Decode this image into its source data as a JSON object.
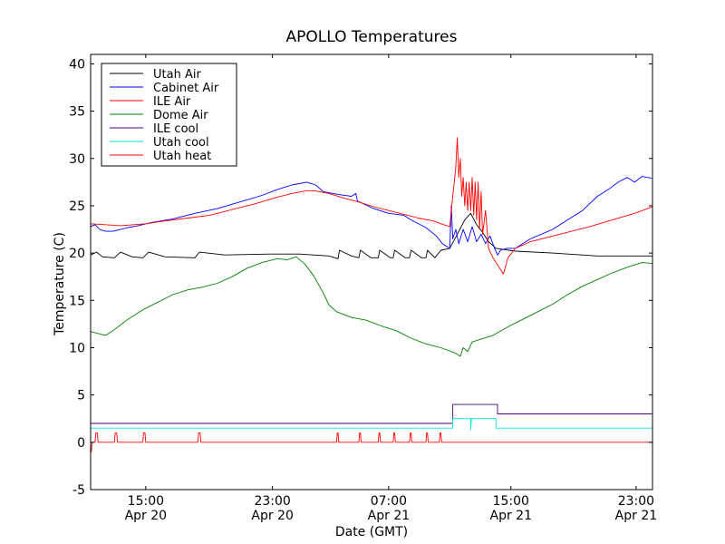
{
  "chart_data": {
    "type": "line",
    "title": "APOLLO Temperatures",
    "xlabel": "Date (GMT)",
    "ylabel": "Temperature (C)",
    "x_unit": "hours since Apr 20 10:00 GMT",
    "xlim": [
      0,
      37.7
    ],
    "ylim": [
      -5,
      41
    ],
    "yticks": [
      -5,
      0,
      5,
      10,
      15,
      20,
      25,
      30,
      35,
      40
    ],
    "ytick_labels": [
      "-5",
      "0",
      "5",
      "10",
      "15",
      "20",
      "25",
      "30",
      "35",
      "40"
    ],
    "xticks": [
      {
        "x": 3.7,
        "time": "15:00",
        "date": "Apr 20"
      },
      {
        "x": 12.2,
        "time": "23:00",
        "date": "Apr 20"
      },
      {
        "x": 20.0,
        "time": "07:00",
        "date": "Apr 21"
      },
      {
        "x": 28.2,
        "time": "15:00",
        "date": "Apr 21"
      },
      {
        "x": 36.6,
        "time": "23:00",
        "date": "Apr 21"
      }
    ],
    "legend_position": "top-left",
    "series": [
      {
        "name": "Utah Air",
        "color": "#000000",
        "kind": "line",
        "points": [
          [
            0,
            19.8
          ],
          [
            0.4,
            20.1
          ],
          [
            0.8,
            19.6
          ],
          [
            1.6,
            19.5
          ],
          [
            2,
            20.1
          ],
          [
            2.8,
            19.6
          ],
          [
            3.5,
            19.5
          ],
          [
            3.9,
            20.1
          ],
          [
            5,
            19.6
          ],
          [
            7,
            19.5
          ],
          [
            7.3,
            20.1
          ],
          [
            9,
            19.8
          ],
          [
            12,
            19.9
          ],
          [
            14,
            19.9
          ],
          [
            16,
            19.7
          ],
          [
            16.6,
            19.4
          ],
          [
            16.7,
            20.3
          ],
          [
            17.5,
            19.7
          ],
          [
            18,
            19.5
          ],
          [
            18.1,
            20.3
          ],
          [
            18.8,
            19.5
          ],
          [
            19.3,
            19.5
          ],
          [
            19.4,
            20.3
          ],
          [
            20.1,
            19.5
          ],
          [
            20.3,
            19.5
          ],
          [
            20.4,
            20.3
          ],
          [
            21.1,
            19.5
          ],
          [
            21.4,
            19.5
          ],
          [
            21.5,
            20.3
          ],
          [
            22.2,
            19.5
          ],
          [
            22.5,
            19.5
          ],
          [
            22.6,
            20.3
          ],
          [
            23.1,
            19.5
          ],
          [
            23.5,
            20.3
          ],
          [
            24.1,
            20.5
          ],
          [
            24.6,
            22
          ],
          [
            25.1,
            23.5
          ],
          [
            25.5,
            24.2
          ],
          [
            25.9,
            23
          ],
          [
            26.3,
            22.2
          ],
          [
            26.7,
            21.2
          ],
          [
            27.2,
            20.5
          ],
          [
            28.5,
            20.2
          ],
          [
            31,
            20
          ],
          [
            34,
            19.7
          ],
          [
            37.7,
            19.7
          ]
        ]
      },
      {
        "name": "Cabinet Air",
        "color": "#0000ff",
        "kind": "line",
        "points": [
          [
            0,
            22.8
          ],
          [
            0.3,
            23
          ],
          [
            0.6,
            22.5
          ],
          [
            1,
            22.3
          ],
          [
            1.5,
            22.3
          ],
          [
            2.5,
            22.7
          ],
          [
            3.2,
            22.9
          ],
          [
            4,
            23.2
          ],
          [
            5.5,
            23.6
          ],
          [
            7,
            24.2
          ],
          [
            8.5,
            24.7
          ],
          [
            10,
            25.4
          ],
          [
            11.5,
            26.1
          ],
          [
            12.5,
            26.7
          ],
          [
            13.5,
            27.2
          ],
          [
            14.5,
            27.5
          ],
          [
            15.1,
            27.2
          ],
          [
            15.6,
            26.5
          ],
          [
            16.6,
            26.2
          ],
          [
            17.5,
            26
          ],
          [
            17.8,
            26.3
          ],
          [
            17.9,
            25.5
          ],
          [
            19,
            24.7
          ],
          [
            20,
            24.2
          ],
          [
            21,
            24
          ],
          [
            21.5,
            23.5
          ],
          [
            22.5,
            22.7
          ],
          [
            23.2,
            21.8
          ],
          [
            23.6,
            21
          ],
          [
            24.1,
            20.5
          ],
          [
            24.2,
            25
          ],
          [
            24.3,
            21.5
          ],
          [
            24.5,
            22.5
          ],
          [
            24.7,
            21
          ],
          [
            25,
            22.5
          ],
          [
            25.3,
            21.2
          ],
          [
            25.6,
            22.8
          ],
          [
            25.9,
            21.2
          ],
          [
            26.2,
            22
          ],
          [
            26.5,
            21
          ],
          [
            26.8,
            21.8
          ],
          [
            27.1,
            20.5
          ],
          [
            27.3,
            19.8
          ],
          [
            27.5,
            20.3
          ],
          [
            27.9,
            20.5
          ],
          [
            28.5,
            20.5
          ],
          [
            29.5,
            21.5
          ],
          [
            31,
            22.5
          ],
          [
            32.2,
            23.7
          ],
          [
            33,
            24.5
          ],
          [
            34,
            26
          ],
          [
            34.8,
            26.8
          ],
          [
            35.4,
            27.5
          ],
          [
            36,
            28
          ],
          [
            36.5,
            27.5
          ],
          [
            37,
            28.1
          ],
          [
            37.7,
            27.9
          ]
        ]
      },
      {
        "name": "ILE Air",
        "color": "#ff0000",
        "kind": "line",
        "points": [
          [
            0,
            23.1
          ],
          [
            2,
            22.9
          ],
          [
            3.7,
            23.1
          ],
          [
            5,
            23.4
          ],
          [
            6.5,
            23.7
          ],
          [
            8,
            24
          ],
          [
            9.5,
            24.6
          ],
          [
            11,
            25.2
          ],
          [
            12.5,
            25.9
          ],
          [
            13.5,
            26.3
          ],
          [
            14.5,
            26.6
          ],
          [
            15,
            26.6
          ],
          [
            16,
            26.3
          ],
          [
            17,
            25.8
          ],
          [
            18,
            25.4
          ],
          [
            19,
            24.9
          ],
          [
            20,
            24.5
          ],
          [
            21,
            24.1
          ],
          [
            22,
            23.7
          ],
          [
            23,
            23.4
          ],
          [
            23.5,
            23.1
          ],
          [
            24.1,
            22.8
          ],
          [
            24.1,
            22.8
          ],
          [
            24.3,
            26
          ],
          [
            24.5,
            29
          ],
          [
            24.6,
            32.2
          ],
          [
            24.7,
            28
          ],
          [
            24.8,
            30
          ],
          [
            24.9,
            26
          ],
          [
            25,
            28
          ],
          [
            25.1,
            25
          ],
          [
            25.2,
            27.5
          ],
          [
            25.3,
            24.5
          ],
          [
            25.4,
            27.5
          ],
          [
            25.5,
            24.5
          ],
          [
            25.6,
            28
          ],
          [
            25.7,
            24
          ],
          [
            25.8,
            27.5
          ],
          [
            25.9,
            23.5
          ],
          [
            26,
            27.5
          ],
          [
            26.1,
            22.5
          ],
          [
            26.2,
            26.5
          ],
          [
            26.3,
            22
          ],
          [
            26.5,
            24.5
          ],
          [
            26.7,
            20.5
          ],
          [
            27,
            19.5
          ],
          [
            27.4,
            18.5
          ],
          [
            27.7,
            17.8
          ],
          [
            28,
            19.5
          ],
          [
            28.5,
            20.5
          ],
          [
            29.5,
            21.2
          ],
          [
            30.5,
            21.6
          ],
          [
            32,
            22.2
          ],
          [
            33.5,
            22.8
          ],
          [
            35,
            23.5
          ],
          [
            36.5,
            24.2
          ],
          [
            37.7,
            24.9
          ]
        ]
      },
      {
        "name": "Dome Air",
        "color": "#008000",
        "kind": "line",
        "points": [
          [
            0,
            11.7
          ],
          [
            0.5,
            11.5
          ],
          [
            1,
            11.3
          ],
          [
            1.5,
            11.8
          ],
          [
            2.5,
            13
          ],
          [
            3.5,
            14
          ],
          [
            4.5,
            14.8
          ],
          [
            5.5,
            15.6
          ],
          [
            6.5,
            16.1
          ],
          [
            7.5,
            16.4
          ],
          [
            8.5,
            16.8
          ],
          [
            9.5,
            17.5
          ],
          [
            10.5,
            18.4
          ],
          [
            11.5,
            19
          ],
          [
            12.5,
            19.4
          ],
          [
            13.2,
            19.3
          ],
          [
            13.8,
            19.6
          ],
          [
            14.4,
            18.8
          ],
          [
            15,
            17.5
          ],
          [
            15.6,
            15.8
          ],
          [
            16,
            14.5
          ],
          [
            16.5,
            13.8
          ],
          [
            17.5,
            13.2
          ],
          [
            18.5,
            12.9
          ],
          [
            19.5,
            12.3
          ],
          [
            20.5,
            11.8
          ],
          [
            21.5,
            11
          ],
          [
            22.5,
            10.4
          ],
          [
            23.5,
            10
          ],
          [
            24.5,
            9.4
          ],
          [
            24.8,
            9.1
          ],
          [
            25,
            10
          ],
          [
            25.3,
            9.6
          ],
          [
            25.6,
            10.6
          ],
          [
            26,
            10.8
          ],
          [
            27,
            11.3
          ],
          [
            28,
            12.2
          ],
          [
            29,
            13
          ],
          [
            30,
            13.8
          ],
          [
            31,
            14.6
          ],
          [
            32,
            15.6
          ],
          [
            33,
            16.5
          ],
          [
            34,
            17.2
          ],
          [
            35,
            17.9
          ],
          [
            36,
            18.5
          ],
          [
            37,
            19
          ],
          [
            37.7,
            18.9
          ]
        ]
      },
      {
        "name": "ILE cool",
        "color": "#4b0082",
        "kind": "step",
        "points": [
          [
            0,
            2
          ],
          [
            24.3,
            2
          ],
          [
            24.3,
            4
          ],
          [
            27.3,
            4
          ],
          [
            27.3,
            3
          ],
          [
            37.7,
            3
          ]
        ]
      },
      {
        "name": "Utah cool",
        "color": "#00e5e5",
        "kind": "step",
        "points": [
          [
            0,
            1.5
          ],
          [
            24.3,
            1.5
          ],
          [
            24.3,
            2.5
          ],
          [
            25.5,
            2.5
          ],
          [
            25.5,
            1.3
          ],
          [
            25.55,
            2.5
          ],
          [
            27.2,
            2.5
          ],
          [
            27.2,
            1.5
          ],
          [
            37.7,
            1.5
          ]
        ]
      },
      {
        "name": "Utah heat",
        "color": "#ff0000",
        "kind": "step",
        "points": [
          [
            0,
            -1
          ],
          [
            0.05,
            -1
          ],
          [
            0.1,
            0
          ],
          [
            0.3,
            0
          ],
          [
            0.35,
            1
          ],
          [
            0.45,
            1
          ],
          [
            0.5,
            0
          ],
          [
            1.6,
            0
          ],
          [
            1.65,
            1
          ],
          [
            1.75,
            1
          ],
          [
            1.8,
            0
          ],
          [
            3.5,
            0
          ],
          [
            3.55,
            1
          ],
          [
            3.65,
            1
          ],
          [
            3.7,
            0
          ],
          [
            7.2,
            0
          ],
          [
            7.25,
            1
          ],
          [
            7.35,
            1
          ],
          [
            7.4,
            0
          ],
          [
            16.5,
            0
          ],
          [
            16.55,
            1
          ],
          [
            16.6,
            1
          ],
          [
            16.65,
            0
          ],
          [
            18.0,
            0
          ],
          [
            18.05,
            1
          ],
          [
            18.1,
            1
          ],
          [
            18.15,
            0
          ],
          [
            19.3,
            0
          ],
          [
            19.35,
            1
          ],
          [
            19.4,
            1
          ],
          [
            19.45,
            0
          ],
          [
            20.3,
            0
          ],
          [
            20.35,
            1
          ],
          [
            20.4,
            1
          ],
          [
            20.45,
            0
          ],
          [
            21.4,
            0
          ],
          [
            21.45,
            1
          ],
          [
            21.5,
            1
          ],
          [
            21.55,
            0
          ],
          [
            22.5,
            0
          ],
          [
            22.55,
            1
          ],
          [
            22.6,
            1
          ],
          [
            22.65,
            0
          ],
          [
            23.4,
            0
          ],
          [
            23.45,
            1
          ],
          [
            23.5,
            1
          ],
          [
            23.55,
            0
          ],
          [
            37.7,
            0
          ]
        ]
      }
    ]
  }
}
